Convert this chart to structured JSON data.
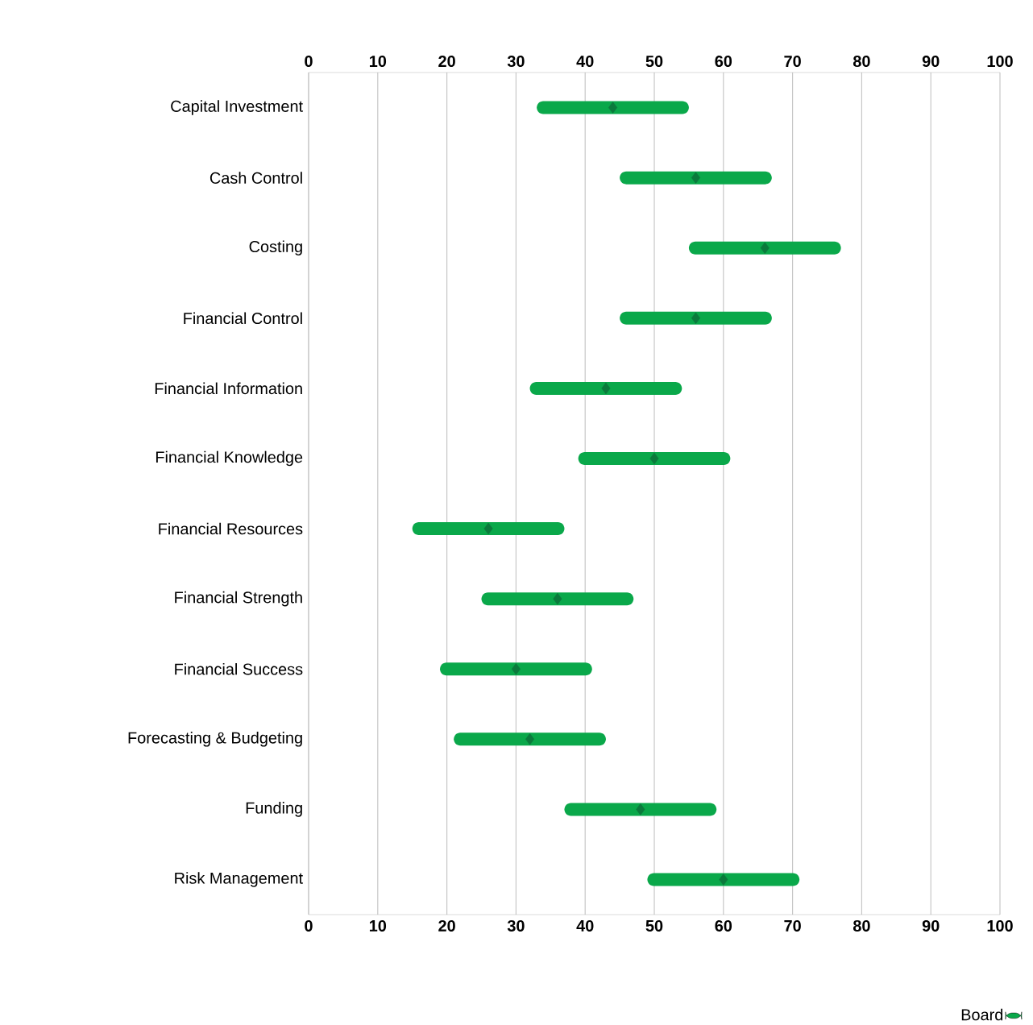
{
  "chart_data": {
    "type": "bar",
    "orientation": "horizontal",
    "categories": [
      "Capital Investment",
      "Cash Control",
      "Costing",
      "Financial Control",
      "Financial Information",
      "Financial Knowledge",
      "Financial Resources",
      "Financial Strength",
      "Financial Success",
      "Forecasting & Budgeting",
      "Funding",
      "Risk Management"
    ],
    "series": [
      {
        "name": "Board",
        "color": "#0aa84a",
        "base": [
          33,
          45,
          55,
          45,
          32,
          39,
          15,
          25,
          19,
          21,
          37,
          49
        ],
        "values": [
          22,
          22,
          22,
          22,
          22,
          22,
          22,
          22,
          22,
          22,
          22,
          22
        ]
      },
      {
        "type": "scatter",
        "color": "#0b7a3c",
        "values": [
          44,
          56,
          66,
          56,
          43,
          50,
          26,
          36,
          30,
          32,
          48,
          60
        ]
      }
    ],
    "marker": "diamond",
    "xlim": [
      0,
      100
    ],
    "xticks": [
      0,
      10,
      20,
      30,
      40,
      50,
      60,
      70,
      80,
      90,
      100
    ],
    "x2lim": [
      0,
      100
    ],
    "x2ticks": [
      0,
      10,
      20,
      30,
      40,
      50,
      60,
      70,
      80,
      90,
      100
    ],
    "grid": "x",
    "legend": "bottom right"
  }
}
